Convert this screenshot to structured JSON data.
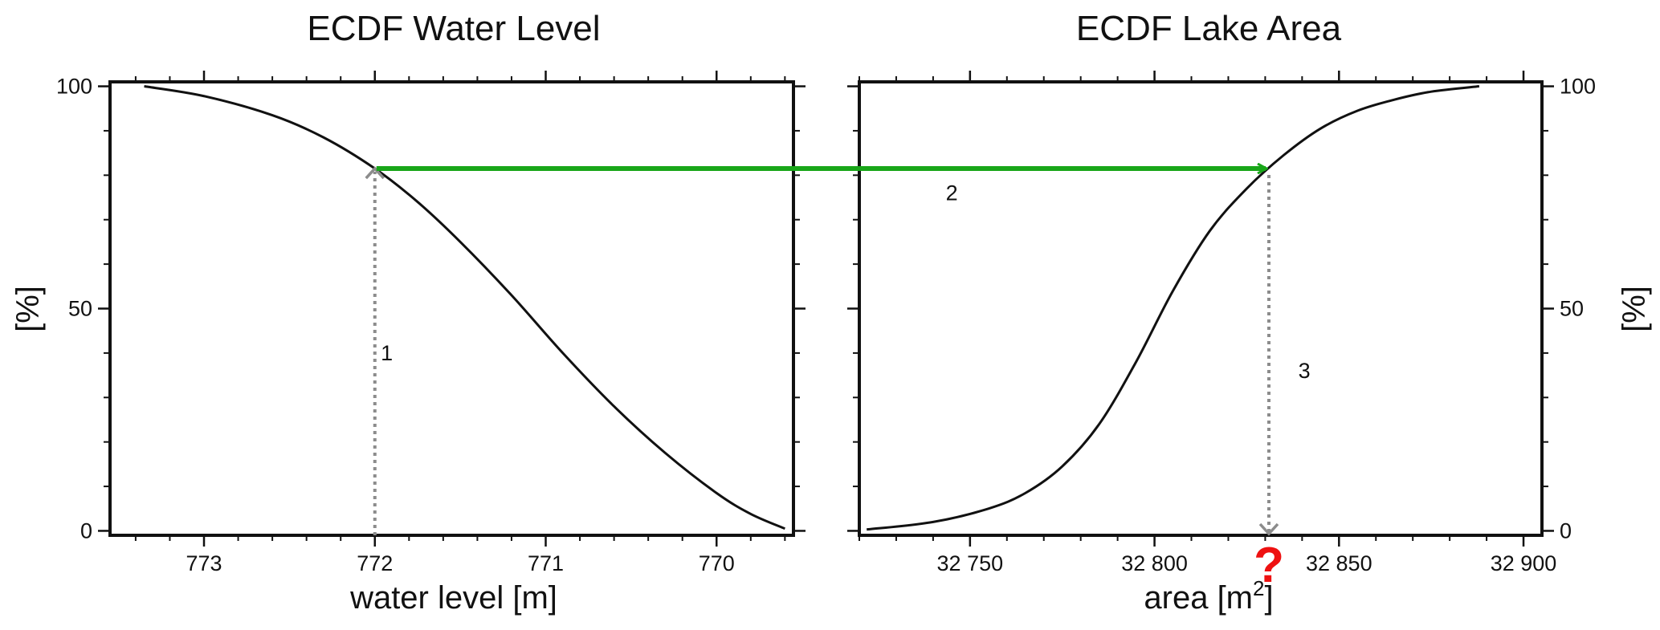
{
  "chart_data": [
    {
      "type": "line",
      "title": "ECDF Water Level",
      "xlabel": "water level [m]",
      "ylabel": "[%]",
      "xlim": [
        773.55,
        769.55
      ],
      "x_reversed": true,
      "ylim": [
        -1,
        101
      ],
      "xticks": [
        773,
        772,
        771,
        770
      ],
      "xtick_labels": [
        "773",
        "772",
        "771",
        "770"
      ],
      "yticks": [
        0,
        50,
        100
      ],
      "ytick_labels": [
        "0",
        "50",
        "100"
      ],
      "y_axis_side": "left",
      "grid": false,
      "series": [
        {
          "x": [
            773.35,
            773.0,
            772.6,
            772.3,
            772.0,
            771.75,
            771.5,
            771.2,
            770.9,
            770.6,
            770.3,
            770.0,
            769.8,
            769.6
          ],
          "y": [
            100,
            97.8,
            93.5,
            88.5,
            81.5,
            74.0,
            65.0,
            53.0,
            40.0,
            28.0,
            17.5,
            8.5,
            3.8,
            0.5
          ]
        }
      ],
      "annotations": [
        {
          "label": "1",
          "type": "dotted-arrow-up",
          "x": 772.0,
          "y_from": 0,
          "y_to": 81.5,
          "label_x": 771.93,
          "label_y": 40
        }
      ]
    },
    {
      "type": "line",
      "title": "ECDF Lake Area",
      "xlabel": "area [m",
      "xlabel_sup": "2",
      "xlabel_end": "]",
      "ylabel": "[%]",
      "xlim": [
        32720,
        32905
      ],
      "ylim": [
        -1,
        101
      ],
      "xticks": [
        32750,
        32800,
        32850,
        32900
      ],
      "xtick_labels": [
        "32 750",
        "32 800",
        "32 850",
        "32 900"
      ],
      "yticks": [
        0,
        50,
        100
      ],
      "ytick_labels": [
        "0",
        "50",
        "100"
      ],
      "y_axis_side": "right",
      "grid": false,
      "series": [
        {
          "x": [
            32722,
            32740,
            32755,
            32765,
            32775,
            32785,
            32795,
            32805,
            32815,
            32825,
            32835,
            32845,
            32855,
            32865,
            32875,
            32888
          ],
          "y": [
            0.3,
            2.0,
            5.0,
            8.5,
            14.5,
            24.0,
            38.0,
            54.0,
            67.5,
            77.0,
            84.5,
            90.5,
            94.5,
            97.0,
            98.8,
            100
          ]
        }
      ],
      "annotations": [
        {
          "label": "2",
          "type": "arrow-right",
          "y": 81.5,
          "x_to": 32831,
          "label_x": 32732,
          "label_y": 76
        },
        {
          "label": "3",
          "type": "dotted-arrow-down",
          "x": 32831,
          "y_from": 81.5,
          "y_to": 0,
          "label_x": 32838,
          "label_y": 36
        },
        {
          "label": "?",
          "type": "question-mark",
          "x": 32831
        }
      ]
    }
  ],
  "colors": {
    "curve": "#111111",
    "projection_arrow": "#19a619",
    "dotted_guide": "#8c8c8c",
    "question_mark": "#ee1111"
  }
}
